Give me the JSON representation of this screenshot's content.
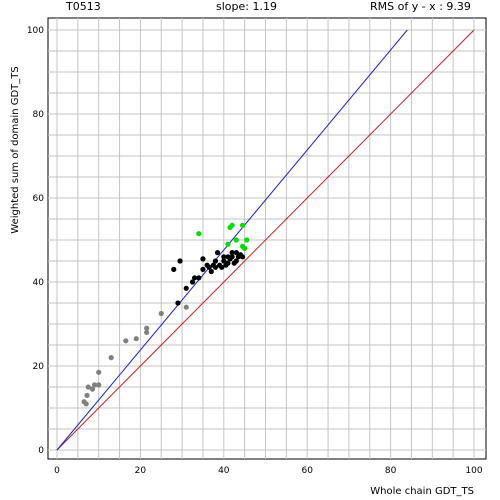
{
  "header": {
    "target": "T0513",
    "slope": "slope: 1.19",
    "rms": "RMS of  y - x : 9.39"
  },
  "chart_data": {
    "type": "scatter",
    "xlabel": "Whole chain GDT_TS",
    "ylabel": "Weighted sum of domain GDT_TS",
    "xlim": [
      0,
      100
    ],
    "ylim": [
      0,
      100
    ],
    "xticks": [
      "0",
      "20",
      "40",
      "60",
      "80",
      "100"
    ],
    "yticks": [
      "0",
      "20",
      "40",
      "60",
      "80",
      "100"
    ],
    "grid": true,
    "lines": [
      {
        "color": "#cc2020",
        "from": [
          0,
          0
        ],
        "to": [
          100,
          100
        ]
      },
      {
        "color": "#2020d0",
        "from": [
          0,
          0
        ],
        "to": [
          84,
          100
        ]
      }
    ],
    "series": [
      {
        "color": "#808080",
        "points": [
          [
            6.5,
            11.5
          ],
          [
            7,
            11
          ],
          [
            7.2,
            13
          ],
          [
            7.5,
            15
          ],
          [
            8.5,
            14.5
          ],
          [
            9,
            15.5
          ],
          [
            10,
            15.5
          ],
          [
            10,
            18.5
          ],
          [
            13,
            22
          ],
          [
            16.5,
            26
          ],
          [
            19,
            26.5
          ],
          [
            21.5,
            28
          ],
          [
            21.5,
            29
          ],
          [
            25,
            32.5
          ],
          [
            31,
            34
          ]
        ]
      },
      {
        "color": "#000000",
        "points": [
          [
            28,
            43
          ],
          [
            29,
            35
          ],
          [
            29.5,
            45
          ],
          [
            31,
            38.5
          ],
          [
            32.5,
            40
          ],
          [
            33,
            41
          ],
          [
            34,
            41
          ],
          [
            35,
            45.5
          ],
          [
            35,
            43
          ],
          [
            36,
            44
          ],
          [
            36.5,
            43.5
          ],
          [
            37,
            42.5
          ],
          [
            37.5,
            44
          ],
          [
            38,
            43.5
          ],
          [
            38,
            45
          ],
          [
            38.5,
            47
          ],
          [
            39,
            44
          ],
          [
            39.5,
            43.5
          ],
          [
            40,
            45
          ],
          [
            40,
            46
          ],
          [
            40.5,
            44
          ],
          [
            41,
            44.5
          ],
          [
            41,
            46
          ],
          [
            41.5,
            45.5
          ],
          [
            42,
            47
          ],
          [
            42,
            46
          ],
          [
            42.5,
            44.5
          ],
          [
            43,
            45
          ],
          [
            43,
            47
          ],
          [
            43.5,
            46
          ],
          [
            44,
            46.5
          ],
          [
            44.5,
            46
          ]
        ]
      },
      {
        "color": "#00e000",
        "points": [
          [
            34,
            51.5
          ],
          [
            41,
            49
          ],
          [
            41.5,
            53
          ],
          [
            42,
            53.5
          ],
          [
            43,
            50
          ],
          [
            44.5,
            53.5
          ],
          [
            44.5,
            48.5
          ],
          [
            45,
            48
          ],
          [
            45.5,
            50
          ]
        ]
      }
    ]
  }
}
